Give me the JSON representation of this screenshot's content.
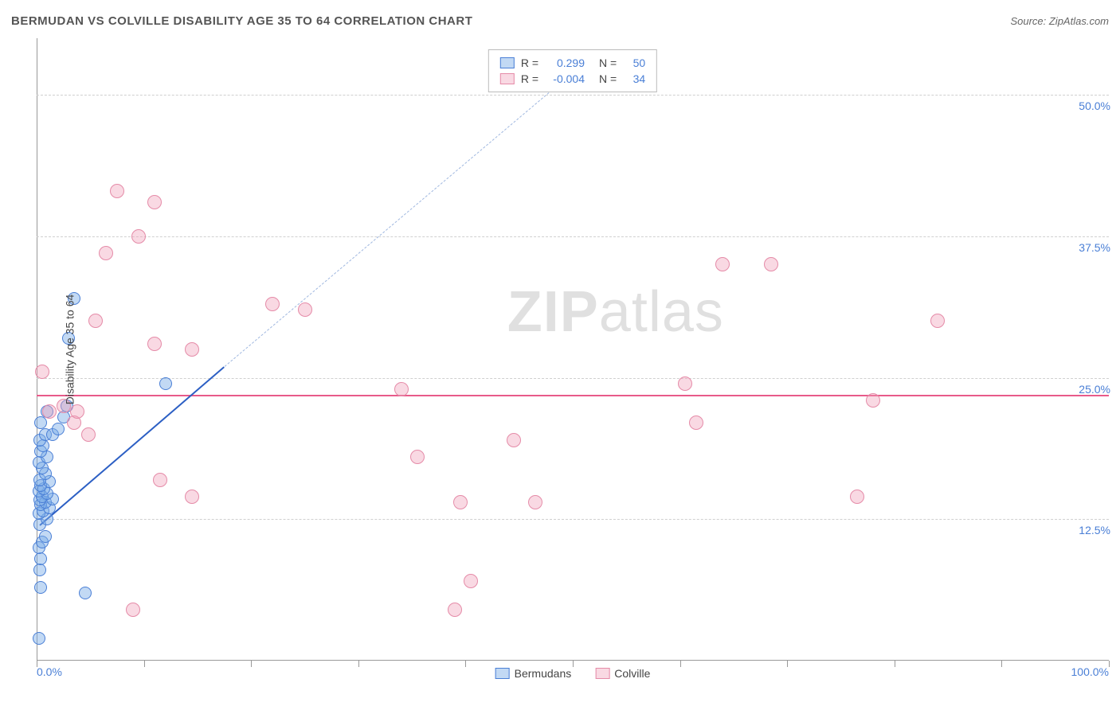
{
  "header": {
    "title": "BERMUDAN VS COLVILLE DISABILITY AGE 35 TO 64 CORRELATION CHART",
    "source": "Source: ZipAtlas.com"
  },
  "watermark": {
    "part1": "ZIP",
    "part2": "atlas"
  },
  "chart": {
    "type": "scatter",
    "y_axis_label": "Disability Age 35 to 64",
    "xlim": [
      0,
      100
    ],
    "ylim": [
      0,
      55
    ],
    "x_ticks": [
      0,
      10,
      20,
      30,
      40,
      50,
      60,
      70,
      80,
      90,
      100
    ],
    "x_tick_labels": {
      "first": "0.0%",
      "last": "100.0%"
    },
    "y_grid": [
      12.5,
      25.0,
      37.5,
      50.0
    ],
    "y_tick_labels": [
      "12.5%",
      "25.0%",
      "37.5%",
      "50.0%"
    ],
    "background_color": "#ffffff",
    "grid_color": "#d0d0d0",
    "axis_color": "#999999",
    "tick_label_color": "#4a7fd6",
    "label_fontsize": 14,
    "title_fontsize": 15,
    "series": [
      {
        "name": "Bermudans",
        "fill": "rgba(120,170,230,0.45)",
        "stroke": "#4a7fd6",
        "dot_radius": 8,
        "points": [
          [
            0.2,
            2.0
          ],
          [
            0.4,
            6.5
          ],
          [
            4.5,
            6.0
          ],
          [
            0.3,
            8.0
          ],
          [
            0.4,
            9.0
          ],
          [
            0.2,
            10.0
          ],
          [
            0.5,
            10.5
          ],
          [
            0.8,
            11.0
          ],
          [
            0.3,
            12.0
          ],
          [
            1.0,
            12.5
          ],
          [
            0.2,
            13.0
          ],
          [
            0.6,
            13.2
          ],
          [
            1.2,
            13.5
          ],
          [
            0.4,
            13.8
          ],
          [
            0.8,
            14.0
          ],
          [
            0.3,
            14.2
          ],
          [
            1.5,
            14.3
          ],
          [
            0.5,
            14.5
          ],
          [
            1.0,
            14.8
          ],
          [
            0.2,
            15.0
          ],
          [
            0.7,
            15.2
          ],
          [
            0.4,
            15.5
          ],
          [
            1.2,
            15.8
          ],
          [
            0.3,
            16.0
          ],
          [
            0.8,
            16.5
          ],
          [
            0.5,
            17.0
          ],
          [
            0.2,
            17.5
          ],
          [
            1.0,
            18.0
          ],
          [
            0.4,
            18.5
          ],
          [
            0.6,
            19.0
          ],
          [
            0.3,
            19.5
          ],
          [
            0.8,
            20.0
          ],
          [
            1.5,
            20.0
          ],
          [
            2.0,
            20.5
          ],
          [
            0.4,
            21.0
          ],
          [
            2.5,
            21.5
          ],
          [
            1.0,
            22.0
          ],
          [
            2.8,
            22.5
          ],
          [
            3.0,
            28.5
          ],
          [
            3.5,
            32.0
          ],
          [
            12.0,
            24.5
          ]
        ],
        "trend": {
          "solid": {
            "x1": 0.3,
            "y1": 12.0,
            "x2": 17.5,
            "y2": 26.0,
            "color": "#2c5fc4",
            "width": 2
          },
          "dashed": {
            "x1": 17.5,
            "y1": 26.0,
            "x2": 50.0,
            "y2": 52.0,
            "color": "#a0b8e0"
          }
        }
      },
      {
        "name": "Colville",
        "fill": "rgba(240,160,185,0.40)",
        "stroke": "#e58ba8",
        "dot_radius": 9,
        "points": [
          [
            1.2,
            22.0
          ],
          [
            0.5,
            25.5
          ],
          [
            2.5,
            22.5
          ],
          [
            3.5,
            21.0
          ],
          [
            3.8,
            22.0
          ],
          [
            4.8,
            20.0
          ],
          [
            5.5,
            30.0
          ],
          [
            6.5,
            36.0
          ],
          [
            7.5,
            41.5
          ],
          [
            9.0,
            4.5
          ],
          [
            9.5,
            37.5
          ],
          [
            11.0,
            40.5
          ],
          [
            11.0,
            28.0
          ],
          [
            11.5,
            16.0
          ],
          [
            14.5,
            14.5
          ],
          [
            14.5,
            27.5
          ],
          [
            22.0,
            31.5
          ],
          [
            25.0,
            31.0
          ],
          [
            34.0,
            24.0
          ],
          [
            35.5,
            18.0
          ],
          [
            39.5,
            14.0
          ],
          [
            39.0,
            4.5
          ],
          [
            40.5,
            7.0
          ],
          [
            44.5,
            19.5
          ],
          [
            46.5,
            14.0
          ],
          [
            60.5,
            24.5
          ],
          [
            61.5,
            21.0
          ],
          [
            64.0,
            35.0
          ],
          [
            68.5,
            35.0
          ],
          [
            76.5,
            14.5
          ],
          [
            78.0,
            23.0
          ],
          [
            84.0,
            30.0
          ]
        ],
        "trend": {
          "flat": {
            "y": 23.5,
            "color": "#e85a8a",
            "width": 2
          }
        }
      }
    ],
    "stats_box": {
      "rows": [
        {
          "swatch_fill": "rgba(120,170,230,0.45)",
          "swatch_stroke": "#4a7fd6",
          "r_label": "R =",
          "r_val": "0.299",
          "n_label": "N =",
          "n_val": "50"
        },
        {
          "swatch_fill": "rgba(240,160,185,0.40)",
          "swatch_stroke": "#e58ba8",
          "r_label": "R =",
          "r_val": "-0.004",
          "n_label": "N =",
          "n_val": "34"
        }
      ]
    },
    "legend": [
      {
        "swatch_fill": "rgba(120,170,230,0.45)",
        "swatch_stroke": "#4a7fd6",
        "label": "Bermudans"
      },
      {
        "swatch_fill": "rgba(240,160,185,0.40)",
        "swatch_stroke": "#e58ba8",
        "label": "Colville"
      }
    ]
  }
}
